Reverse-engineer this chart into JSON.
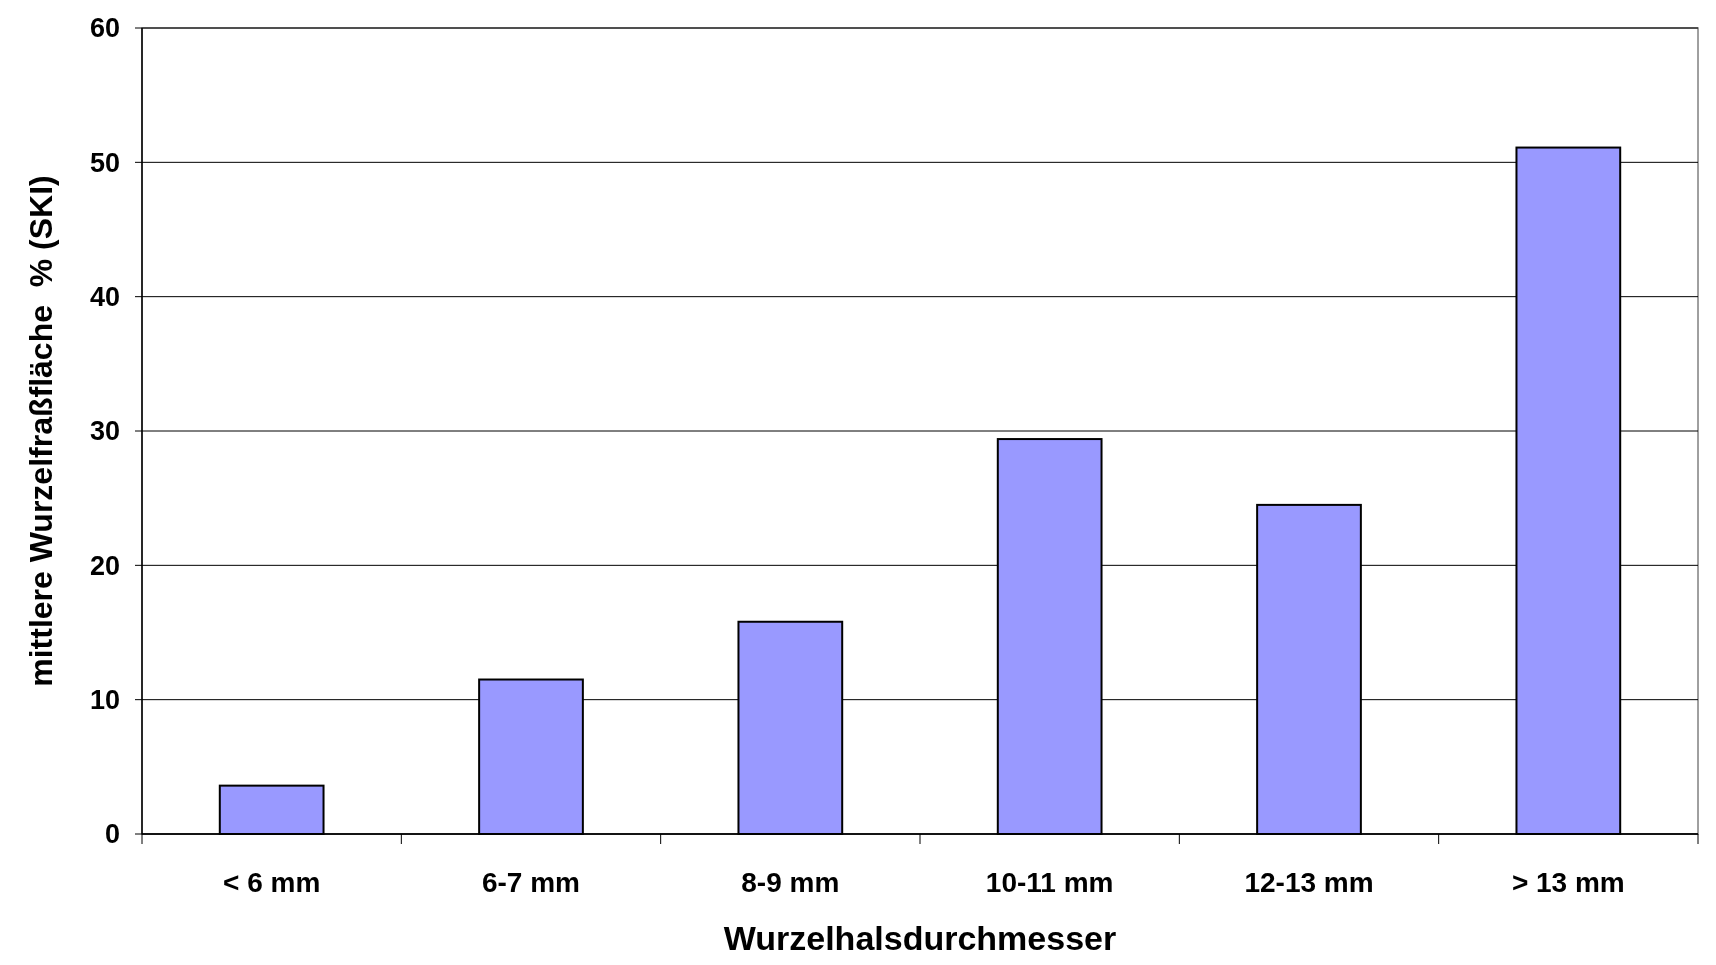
{
  "chart_data": {
    "type": "bar",
    "xlabel": "Wurzelhalsdurchmesser",
    "ylabel": "mittlere Wurzelfraßfläche  % (SKI)",
    "categories": [
      "< 6 mm",
      "6-7 mm",
      "8-9 mm",
      "10-11 mm",
      "12-13 mm",
      "> 13 mm"
    ],
    "values": [
      3.6,
      11.5,
      15.8,
      29.4,
      24.5,
      51.1
    ],
    "color": "#9999ff",
    "ylim": [
      0,
      60
    ],
    "yticks": [
      0,
      10,
      20,
      30,
      40,
      50,
      60
    ],
    "grid": "y"
  }
}
